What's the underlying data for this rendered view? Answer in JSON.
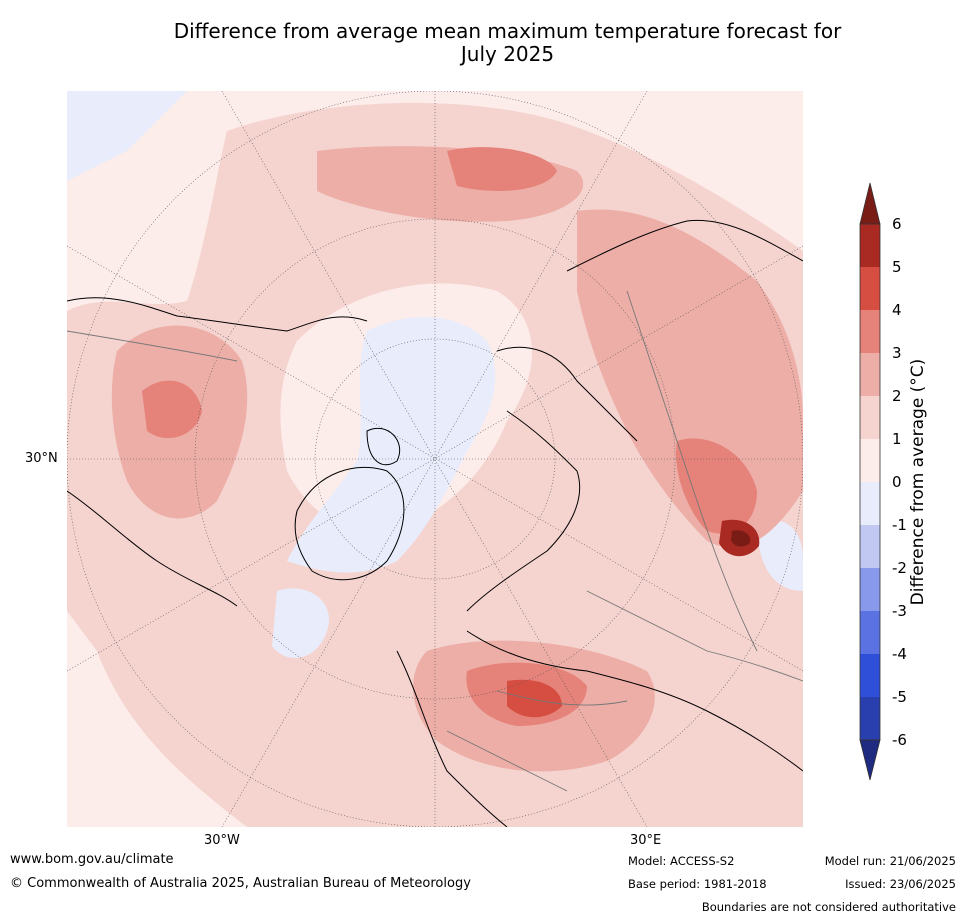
{
  "title": {
    "line1": "Difference from average mean maximum temperature forecast for",
    "line2": "July 2025"
  },
  "map": {
    "projection": "north-polar-stereographic",
    "lat_labels": [
      "30°N"
    ],
    "lon_labels": [
      "30°W",
      "30°E"
    ]
  },
  "colorbar": {
    "label": "Difference from average ($^\\circ$C)",
    "label_display": "Difference from average (°C)",
    "ticks": [
      "6",
      "5",
      "4",
      "3",
      "2",
      "1",
      "0",
      "-1",
      "-2",
      "-3",
      "-4",
      "-5",
      "-6"
    ],
    "colors": {
      "above_6": "#7a1c16",
      "5_to_6": "#a82a22",
      "4_to_5": "#d64d41",
      "3_to_4": "#e58279",
      "2_to_3": "#edaea7",
      "1_to_2": "#f5d4d0",
      "0_to_1": "#fcecea",
      "-1_to_0": "#e8ecfb",
      "-2_to_-1": "#c1c9f2",
      "-3_to_-2": "#8898ea",
      "-4_to_-3": "#5a72e2",
      "-5_to_-4": "#2f4fd8",
      "-6_to_-5": "#2a3fae",
      "below_-6": "#1f2b80"
    }
  },
  "footer": {
    "website": "www.bom.gov.au/climate",
    "copyright": "© Commonwealth of Australia 2025, Australian Bureau of Meteorology",
    "model": "Model: ACCESS-S2",
    "base_period": "Base period: 1981-2018",
    "model_run": "Model run: 21/06/2025",
    "issued": "Issued: 23/06/2025",
    "disclaimer": "Boundaries are not considered authoritative"
  }
}
